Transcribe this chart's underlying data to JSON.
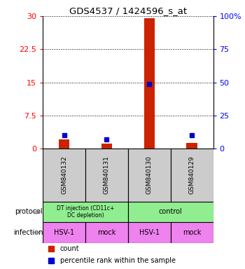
{
  "title": "GDS4537 / 1424596_s_at",
  "samples": [
    "GSM840132",
    "GSM840131",
    "GSM840130",
    "GSM840129"
  ],
  "counts": [
    2.0,
    1.2,
    29.5,
    1.3
  ],
  "percentile_ranks": [
    10.0,
    7.0,
    48.5,
    10.0
  ],
  "ylim_left": [
    0,
    30
  ],
  "ylim_right": [
    0,
    100
  ],
  "yticks_left": [
    0,
    7.5,
    15,
    22.5,
    30
  ],
  "yticks_right": [
    0,
    25,
    50,
    75,
    100
  ],
  "bar_color": "#cc2200",
  "dot_color": "#0000cc",
  "bar_width": 0.25,
  "infection_labels": [
    "HSV-1",
    "mock",
    "HSV-1",
    "mock"
  ],
  "sample_box_color": "#cccccc",
  "legend_count_color": "#cc2200",
  "legend_pct_color": "#0000cc",
  "background_color": "#ffffff"
}
